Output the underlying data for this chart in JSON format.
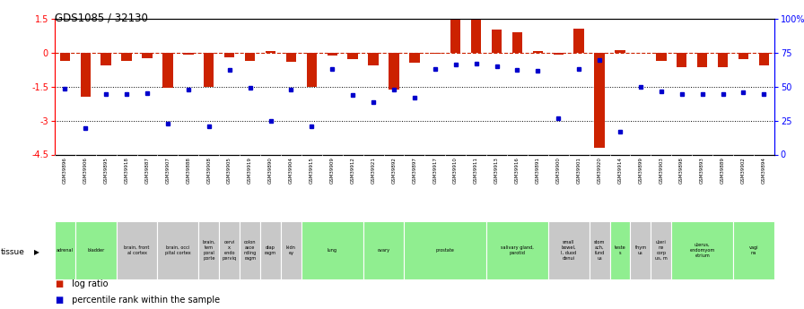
{
  "title": "GDS1085 / 32130",
  "samples": [
    "GSM39896",
    "GSM39906",
    "GSM39895",
    "GSM39918",
    "GSM39887",
    "GSM39907",
    "GSM39888",
    "GSM39908",
    "GSM39905",
    "GSM39919",
    "GSM39890",
    "GSM39904",
    "GSM39915",
    "GSM39909",
    "GSM39912",
    "GSM39921",
    "GSM39892",
    "GSM39897",
    "GSM39917",
    "GSM39910",
    "GSM39911",
    "GSM39913",
    "GSM39916",
    "GSM39891",
    "GSM39900",
    "GSM39901",
    "GSM39920",
    "GSM39914",
    "GSM39899",
    "GSM39903",
    "GSM39898",
    "GSM39893",
    "GSM39889",
    "GSM39902",
    "GSM39894"
  ],
  "log_ratio": [
    -0.35,
    -1.95,
    -0.55,
    -0.38,
    -0.25,
    -1.55,
    -0.08,
    -1.52,
    -0.22,
    -0.35,
    0.08,
    -0.42,
    -1.52,
    -0.15,
    -0.28,
    -0.55,
    -1.65,
    -0.45,
    -0.05,
    1.48,
    1.52,
    1.0,
    0.9,
    0.05,
    -0.08,
    1.05,
    -4.2,
    0.12,
    -0.02,
    -0.38,
    -0.65,
    -0.65,
    -0.65,
    -0.28,
    -0.55
  ],
  "pct_rank": [
    -1.58,
    -3.35,
    -1.85,
    -1.82,
    -1.78,
    -3.15,
    -1.65,
    -3.25,
    -0.75,
    -1.55,
    -3.0,
    -1.62,
    -3.25,
    -0.72,
    -1.88,
    -2.2,
    -1.65,
    -2.0,
    -0.72,
    -0.52,
    -0.5,
    -0.62,
    -0.75,
    -0.82,
    -2.88,
    -0.72,
    -0.32,
    -3.5,
    -1.52,
    -1.72,
    -1.82,
    -1.82,
    -1.82,
    -1.75,
    -1.82
  ],
  "tissue_defs": [
    {
      "label": "adrenal",
      "start": 0,
      "end": 1,
      "color": "#90ee90"
    },
    {
      "label": "bladder",
      "start": 1,
      "end": 3,
      "color": "#90ee90"
    },
    {
      "label": "brain, front\nal cortex",
      "start": 3,
      "end": 5,
      "color": "#c8c8c8"
    },
    {
      "label": "brain, occi\npital cortex",
      "start": 5,
      "end": 7,
      "color": "#c8c8c8"
    },
    {
      "label": "brain,\ntem\nporal\nporte",
      "start": 7,
      "end": 8,
      "color": "#c8c8c8"
    },
    {
      "label": "cervi\nx,\nendo\nperviq",
      "start": 8,
      "end": 9,
      "color": "#c8c8c8"
    },
    {
      "label": "colon\nasce\nnding\nragm",
      "start": 9,
      "end": 10,
      "color": "#c8c8c8"
    },
    {
      "label": "diap\nragm",
      "start": 10,
      "end": 11,
      "color": "#c8c8c8"
    },
    {
      "label": "kidn\ney",
      "start": 11,
      "end": 12,
      "color": "#c8c8c8"
    },
    {
      "label": "lung",
      "start": 12,
      "end": 15,
      "color": "#90ee90"
    },
    {
      "label": "ovary",
      "start": 15,
      "end": 17,
      "color": "#90ee90"
    },
    {
      "label": "prostate",
      "start": 17,
      "end": 21,
      "color": "#90ee90"
    },
    {
      "label": "salivary gland,\nparotid",
      "start": 21,
      "end": 24,
      "color": "#90ee90"
    },
    {
      "label": "small\nbowel,\nI, duod\ndenui",
      "start": 24,
      "end": 26,
      "color": "#c8c8c8"
    },
    {
      "label": "stom\nach,\nfund\nus",
      "start": 26,
      "end": 27,
      "color": "#c8c8c8"
    },
    {
      "label": "teste\ns",
      "start": 27,
      "end": 28,
      "color": "#90ee90"
    },
    {
      "label": "thym\nus",
      "start": 28,
      "end": 29,
      "color": "#c8c8c8"
    },
    {
      "label": "uteri\nne\ncorp\nus, m",
      "start": 29,
      "end": 30,
      "color": "#c8c8c8"
    },
    {
      "label": "uterus,\nendomyom\netrium",
      "start": 30,
      "end": 33,
      "color": "#90ee90"
    },
    {
      "label": "vagi\nna",
      "start": 33,
      "end": 35,
      "color": "#90ee90"
    }
  ],
  "ylim_left": [
    -4.5,
    1.5
  ],
  "yticks_left": [
    -4.5,
    -3.0,
    -1.5,
    0.0,
    1.5
  ],
  "ytick_labels_left": [
    "-4.5",
    "-3",
    "-1.5",
    "0",
    "1.5"
  ],
  "yticks_right": [
    0,
    25,
    50,
    75,
    100
  ],
  "ytick_labels_right": [
    "0",
    "25",
    "50",
    "75",
    "100%"
  ],
  "hlines": [
    -1.5,
    -3.0
  ],
  "bar_color": "#cc2200",
  "pct_color": "#0000cc",
  "bar_width": 0.5,
  "label_bg": "#d0d0d0"
}
